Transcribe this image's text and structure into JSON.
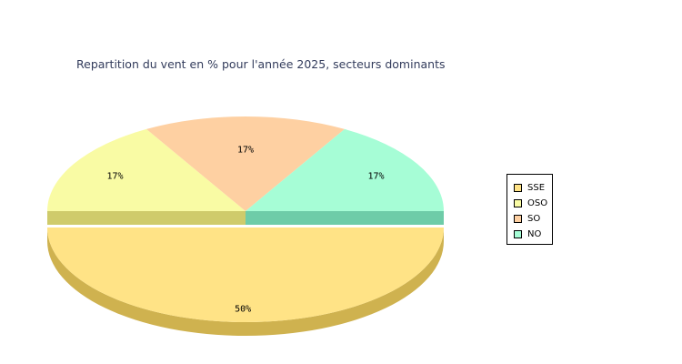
{
  "chart_data": {
    "type": "pie",
    "title": "Repartition du vent en % pour l'année 2025, secteurs dominants",
    "categories": [
      "SSE",
      "OSO",
      "SO",
      "NO"
    ],
    "values": [
      50,
      17,
      17,
      17
    ],
    "labels": [
      "50%",
      "17%",
      "17%",
      "17%"
    ],
    "colors": [
      "#ffe386",
      "#f9fba4",
      "#fed0a2",
      "#a6fdd6"
    ],
    "side_colors": [
      "#cfb24f",
      "#cfcb6b",
      "#d0a874",
      "#6ecca8"
    ],
    "legend_position": "right",
    "style": "3d-exploded"
  }
}
